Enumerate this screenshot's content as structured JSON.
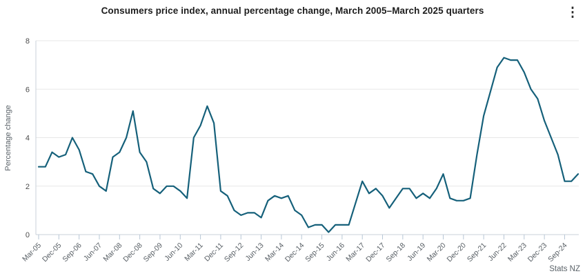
{
  "header": {
    "title": "Consumers price index, annual percentage change, March 2005–March 2025 quarters",
    "menu_icon_glyph": "⋮",
    "menu_icon_name": "kebab-menu-icon"
  },
  "attribution": "Stats NZ",
  "colors": {
    "line": "#15607a",
    "grid": "#e7e7e7",
    "axis": "#c9d2da",
    "tick": "#b7c6d5",
    "x_label_text": "#565d63",
    "y_label_text": "#4b4b4b",
    "title_text": "#1c1c1c"
  },
  "chart_data": {
    "type": "line",
    "title": "Consumers price index, annual percentage change, March 2005–March 2025 quarters",
    "xlabel": "",
    "ylabel": "Percentage change",
    "ylim": [
      0,
      8
    ],
    "yticks": [
      0,
      2,
      4,
      6,
      8
    ],
    "grid": "horizontal",
    "legend": "none",
    "line_color": "#15607a",
    "x_tick_step": 3,
    "x_tick_labels_visible": [
      "Mar-05",
      "Dec-05",
      "Sep-06",
      "Jun-07",
      "Mar-08",
      "Dec-08",
      "Sep-09",
      "Jun-10",
      "Mar-11",
      "Dec-11",
      "Sep-12",
      "Jun-13",
      "Mar-14",
      "Dec-14",
      "Sep-15",
      "Jun-16",
      "Mar-17",
      "Dec-17",
      "Sep-18",
      "Jun-19",
      "Mar-20",
      "Dec-20",
      "Sep-21",
      "Jun-22",
      "Mar-23",
      "Dec-23",
      "Sep-24"
    ],
    "quarters": [
      "Mar-05",
      "Jun-05",
      "Sep-05",
      "Dec-05",
      "Mar-06",
      "Jun-06",
      "Sep-06",
      "Dec-06",
      "Mar-07",
      "Jun-07",
      "Sep-07",
      "Dec-07",
      "Mar-08",
      "Jun-08",
      "Sep-08",
      "Dec-08",
      "Mar-09",
      "Jun-09",
      "Sep-09",
      "Dec-09",
      "Mar-10",
      "Jun-10",
      "Sep-10",
      "Dec-10",
      "Mar-11",
      "Jun-11",
      "Sep-11",
      "Dec-11",
      "Mar-12",
      "Jun-12",
      "Sep-12",
      "Dec-12",
      "Mar-13",
      "Jun-13",
      "Sep-13",
      "Dec-13",
      "Mar-14",
      "Jun-14",
      "Sep-14",
      "Dec-14",
      "Mar-15",
      "Jun-15",
      "Sep-15",
      "Dec-15",
      "Mar-16",
      "Jun-16",
      "Sep-16",
      "Dec-16",
      "Mar-17",
      "Jun-17",
      "Sep-17",
      "Dec-17",
      "Mar-18",
      "Jun-18",
      "Sep-18",
      "Dec-18",
      "Mar-19",
      "Jun-19",
      "Sep-19",
      "Dec-19",
      "Mar-20",
      "Jun-20",
      "Sep-20",
      "Dec-20",
      "Mar-21",
      "Jun-21",
      "Sep-21",
      "Dec-21",
      "Mar-22",
      "Jun-22",
      "Sep-22",
      "Dec-22",
      "Mar-23",
      "Jun-23",
      "Sep-23",
      "Dec-23",
      "Mar-24",
      "Jun-24",
      "Sep-24",
      "Dec-24",
      "Mar-25"
    ],
    "values": [
      2.8,
      2.8,
      3.4,
      3.2,
      3.3,
      4.0,
      3.5,
      2.6,
      2.5,
      2.0,
      1.8,
      3.2,
      3.4,
      4.0,
      5.1,
      3.4,
      3.0,
      1.9,
      1.7,
      2.0,
      2.0,
      1.8,
      1.5,
      4.0,
      4.5,
      5.3,
      4.6,
      1.8,
      1.6,
      1.0,
      0.8,
      0.9,
      0.9,
      0.7,
      1.4,
      1.6,
      1.5,
      1.6,
      1.0,
      0.8,
      0.3,
      0.4,
      0.4,
      0.1,
      0.4,
      0.4,
      0.4,
      1.3,
      2.2,
      1.7,
      1.9,
      1.6,
      1.1,
      1.5,
      1.9,
      1.9,
      1.5,
      1.7,
      1.5,
      1.9,
      2.5,
      1.5,
      1.4,
      1.4,
      1.5,
      3.3,
      4.9,
      5.9,
      6.9,
      7.3,
      7.2,
      7.2,
      6.7,
      6.0,
      5.6,
      4.7,
      4.0,
      3.3,
      2.2,
      2.2,
      2.5
    ]
  }
}
